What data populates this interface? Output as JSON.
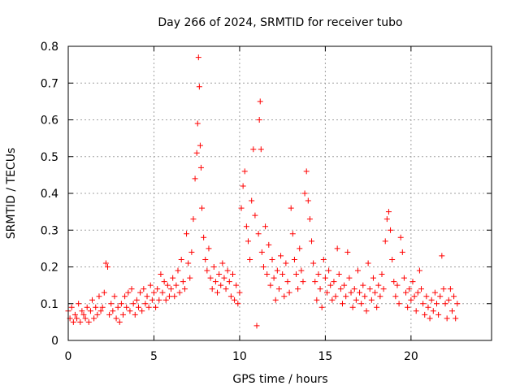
{
  "chart_data": {
    "type": "scatter",
    "title": "Day 266 of 2024, SRMTID for receiver tubo",
    "xlabel": "GPS time / hours",
    "ylabel": "SRMTID / TECUs",
    "xlim": [
      0,
      24.7
    ],
    "ylim": [
      0,
      0.8
    ],
    "x_ticks": [
      0,
      5,
      10,
      15,
      20
    ],
    "y_ticks": [
      0,
      0.1,
      0.2,
      0.3,
      0.4,
      0.5,
      0.6,
      0.7,
      0.8
    ],
    "grid": true,
    "marker": "+",
    "color": "#ff0000",
    "series": [
      {
        "name": "SRMTID",
        "points": [
          [
            0.0,
            0.08
          ],
          [
            0.1,
            0.06
          ],
          [
            0.2,
            0.09
          ],
          [
            0.3,
            0.05
          ],
          [
            0.4,
            0.07
          ],
          [
            0.5,
            0.06
          ],
          [
            0.6,
            0.1
          ],
          [
            0.7,
            0.05
          ],
          [
            0.8,
            0.08
          ],
          [
            0.9,
            0.07
          ],
          [
            1.0,
            0.06
          ],
          [
            1.1,
            0.09
          ],
          [
            1.2,
            0.05
          ],
          [
            1.3,
            0.08
          ],
          [
            1.4,
            0.11
          ],
          [
            1.5,
            0.06
          ],
          [
            1.6,
            0.09
          ],
          [
            1.7,
            0.07
          ],
          [
            1.8,
            0.12
          ],
          [
            1.9,
            0.08
          ],
          [
            2.0,
            0.09
          ],
          [
            2.1,
            0.13
          ],
          [
            2.2,
            0.21
          ],
          [
            2.3,
            0.2
          ],
          [
            2.4,
            0.07
          ],
          [
            2.5,
            0.1
          ],
          [
            2.6,
            0.08
          ],
          [
            2.7,
            0.12
          ],
          [
            2.8,
            0.06
          ],
          [
            2.9,
            0.09
          ],
          [
            3.0,
            0.05
          ],
          [
            3.1,
            0.1
          ],
          [
            3.2,
            0.07
          ],
          [
            3.3,
            0.12
          ],
          [
            3.4,
            0.09
          ],
          [
            3.5,
            0.13
          ],
          [
            3.6,
            0.08
          ],
          [
            3.7,
            0.14
          ],
          [
            3.8,
            0.1
          ],
          [
            3.9,
            0.07
          ],
          [
            4.0,
            0.11
          ],
          [
            4.1,
            0.09
          ],
          [
            4.2,
            0.13
          ],
          [
            4.3,
            0.08
          ],
          [
            4.4,
            0.14
          ],
          [
            4.5,
            0.1
          ],
          [
            4.6,
            0.12
          ],
          [
            4.7,
            0.09
          ],
          [
            4.8,
            0.15
          ],
          [
            4.9,
            0.11
          ],
          [
            5.0,
            0.13
          ],
          [
            5.1,
            0.09
          ],
          [
            5.2,
            0.14
          ],
          [
            5.3,
            0.11
          ],
          [
            5.4,
            0.18
          ],
          [
            5.5,
            0.13
          ],
          [
            5.6,
            0.16
          ],
          [
            5.7,
            0.11
          ],
          [
            5.8,
            0.15
          ],
          [
            5.9,
            0.12
          ],
          [
            6.0,
            0.14
          ],
          [
            6.1,
            0.17
          ],
          [
            6.2,
            0.12
          ],
          [
            6.3,
            0.15
          ],
          [
            6.4,
            0.19
          ],
          [
            6.5,
            0.13
          ],
          [
            6.6,
            0.22
          ],
          [
            6.7,
            0.16
          ],
          [
            6.8,
            0.14
          ],
          [
            6.9,
            0.29
          ],
          [
            7.0,
            0.21
          ],
          [
            7.1,
            0.17
          ],
          [
            7.2,
            0.24
          ],
          [
            7.3,
            0.33
          ],
          [
            7.4,
            0.44
          ],
          [
            7.5,
            0.51
          ],
          [
            7.55,
            0.59
          ],
          [
            7.6,
            0.77
          ],
          [
            7.65,
            0.69
          ],
          [
            7.7,
            0.53
          ],
          [
            7.75,
            0.47
          ],
          [
            7.8,
            0.36
          ],
          [
            7.9,
            0.28
          ],
          [
            8.0,
            0.22
          ],
          [
            8.1,
            0.19
          ],
          [
            8.2,
            0.25
          ],
          [
            8.3,
            0.17
          ],
          [
            8.4,
            0.14
          ],
          [
            8.5,
            0.2
          ],
          [
            8.6,
            0.16
          ],
          [
            8.7,
            0.13
          ],
          [
            8.8,
            0.18
          ],
          [
            8.9,
            0.15
          ],
          [
            9.0,
            0.21
          ],
          [
            9.1,
            0.17
          ],
          [
            9.2,
            0.14
          ],
          [
            9.3,
            0.19
          ],
          [
            9.4,
            0.16
          ],
          [
            9.5,
            0.12
          ],
          [
            9.6,
            0.18
          ],
          [
            9.7,
            0.11
          ],
          [
            9.8,
            0.15
          ],
          [
            9.9,
            0.1
          ],
          [
            10.0,
            0.13
          ],
          [
            10.1,
            0.36
          ],
          [
            10.2,
            0.42
          ],
          [
            10.3,
            0.46
          ],
          [
            10.4,
            0.31
          ],
          [
            10.5,
            0.27
          ],
          [
            10.6,
            0.22
          ],
          [
            10.7,
            0.38
          ],
          [
            10.8,
            0.52
          ],
          [
            10.9,
            0.34
          ],
          [
            11.0,
            0.04
          ],
          [
            11.1,
            0.29
          ],
          [
            11.15,
            0.6
          ],
          [
            11.2,
            0.65
          ],
          [
            11.25,
            0.52
          ],
          [
            11.3,
            0.24
          ],
          [
            11.4,
            0.2
          ],
          [
            11.5,
            0.31
          ],
          [
            11.6,
            0.18
          ],
          [
            11.7,
            0.26
          ],
          [
            11.8,
            0.15
          ],
          [
            11.9,
            0.22
          ],
          [
            12.0,
            0.17
          ],
          [
            12.1,
            0.11
          ],
          [
            12.2,
            0.19
          ],
          [
            12.3,
            0.14
          ],
          [
            12.4,
            0.23
          ],
          [
            12.5,
            0.18
          ],
          [
            12.6,
            0.12
          ],
          [
            12.7,
            0.21
          ],
          [
            12.8,
            0.16
          ],
          [
            12.9,
            0.13
          ],
          [
            13.0,
            0.36
          ],
          [
            13.1,
            0.29
          ],
          [
            13.2,
            0.22
          ],
          [
            13.3,
            0.18
          ],
          [
            13.4,
            0.14
          ],
          [
            13.5,
            0.25
          ],
          [
            13.6,
            0.19
          ],
          [
            13.7,
            0.16
          ],
          [
            13.8,
            0.4
          ],
          [
            13.9,
            0.46
          ],
          [
            14.0,
            0.38
          ],
          [
            14.1,
            0.33
          ],
          [
            14.2,
            0.27
          ],
          [
            14.3,
            0.21
          ],
          [
            14.4,
            0.16
          ],
          [
            14.5,
            0.11
          ],
          [
            14.6,
            0.18
          ],
          [
            14.7,
            0.14
          ],
          [
            14.8,
            0.09
          ],
          [
            14.9,
            0.22
          ],
          [
            15.0,
            0.17
          ],
          [
            15.1,
            0.13
          ],
          [
            15.2,
            0.19
          ],
          [
            15.3,
            0.15
          ],
          [
            15.4,
            0.11
          ],
          [
            15.5,
            0.16
          ],
          [
            15.6,
            0.12
          ],
          [
            15.7,
            0.25
          ],
          [
            15.8,
            0.18
          ],
          [
            15.9,
            0.14
          ],
          [
            16.0,
            0.1
          ],
          [
            16.1,
            0.15
          ],
          [
            16.2,
            0.12
          ],
          [
            16.3,
            0.24
          ],
          [
            16.4,
            0.17
          ],
          [
            16.5,
            0.13
          ],
          [
            16.6,
            0.09
          ],
          [
            16.7,
            0.14
          ],
          [
            16.8,
            0.11
          ],
          [
            16.9,
            0.19
          ],
          [
            17.0,
            0.13
          ],
          [
            17.1,
            0.1
          ],
          [
            17.2,
            0.15
          ],
          [
            17.3,
            0.12
          ],
          [
            17.4,
            0.08
          ],
          [
            17.5,
            0.21
          ],
          [
            17.6,
            0.14
          ],
          [
            17.7,
            0.11
          ],
          [
            17.8,
            0.17
          ],
          [
            17.9,
            0.13
          ],
          [
            18.0,
            0.09
          ],
          [
            18.1,
            0.15
          ],
          [
            18.2,
            0.12
          ],
          [
            18.3,
            0.18
          ],
          [
            18.4,
            0.14
          ],
          [
            18.5,
            0.27
          ],
          [
            18.6,
            0.33
          ],
          [
            18.7,
            0.35
          ],
          [
            18.8,
            0.3
          ],
          [
            18.9,
            0.22
          ],
          [
            19.0,
            0.16
          ],
          [
            19.1,
            0.12
          ],
          [
            19.2,
            0.15
          ],
          [
            19.3,
            0.1
          ],
          [
            19.4,
            0.28
          ],
          [
            19.5,
            0.24
          ],
          [
            19.6,
            0.17
          ],
          [
            19.7,
            0.13
          ],
          [
            19.8,
            0.09
          ],
          [
            19.9,
            0.14
          ],
          [
            20.0,
            0.11
          ],
          [
            20.1,
            0.16
          ],
          [
            20.2,
            0.12
          ],
          [
            20.3,
            0.08
          ],
          [
            20.4,
            0.13
          ],
          [
            20.5,
            0.19
          ],
          [
            20.6,
            0.14
          ],
          [
            20.7,
            0.1
          ],
          [
            20.8,
            0.07
          ],
          [
            20.9,
            0.12
          ],
          [
            21.0,
            0.09
          ],
          [
            21.1,
            0.06
          ],
          [
            21.2,
            0.11
          ],
          [
            21.3,
            0.08
          ],
          [
            21.4,
            0.13
          ],
          [
            21.5,
            0.1
          ],
          [
            21.6,
            0.07
          ],
          [
            21.7,
            0.12
          ],
          [
            21.8,
            0.23
          ],
          [
            21.9,
            0.14
          ],
          [
            22.0,
            0.1
          ],
          [
            22.1,
            0.06
          ],
          [
            22.2,
            0.11
          ],
          [
            22.3,
            0.14
          ],
          [
            22.4,
            0.08
          ],
          [
            22.5,
            0.12
          ],
          [
            22.6,
            0.06
          ],
          [
            22.7,
            0.1
          ]
        ]
      }
    ]
  }
}
